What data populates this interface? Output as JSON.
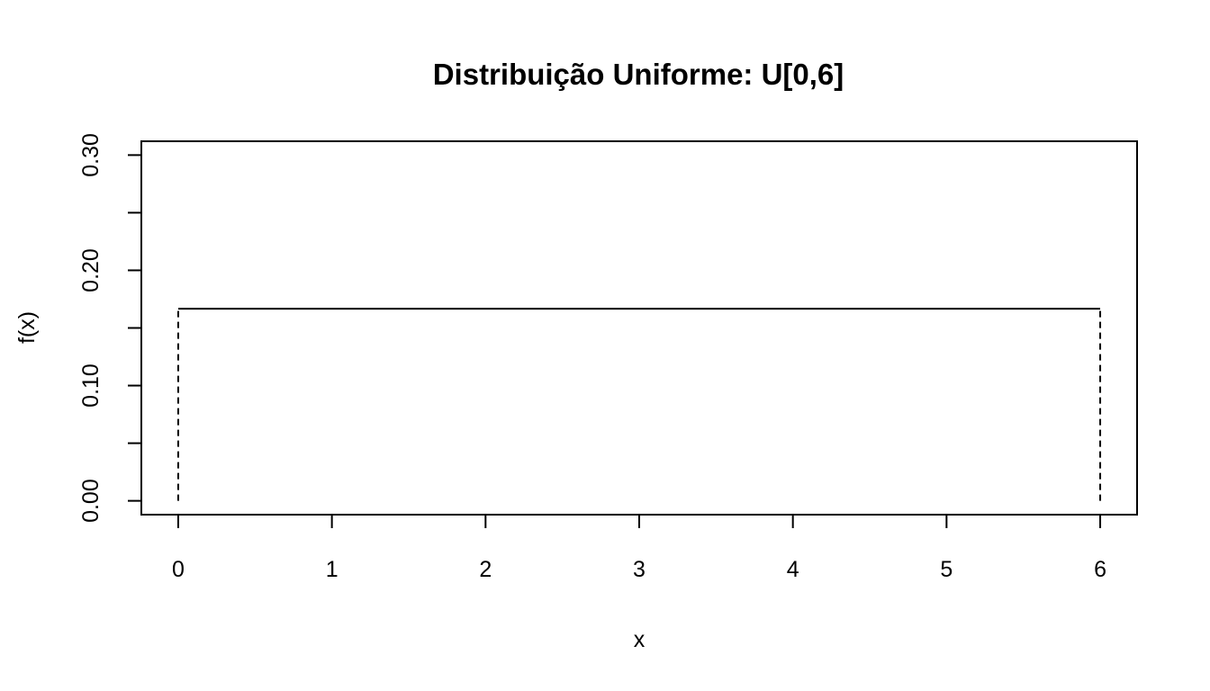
{
  "chart_data": {
    "type": "line",
    "title": "Distribuição Uniforme: U[0,6]",
    "xlabel": "x",
    "ylabel": "f(x)",
    "xlim": [
      -0.24,
      6.24
    ],
    "ylim": [
      -0.012,
      0.312
    ],
    "x_ticks": [
      0,
      1,
      2,
      3,
      4,
      5,
      6
    ],
    "x_tick_labels": [
      "0",
      "1",
      "2",
      "3",
      "4",
      "5",
      "6"
    ],
    "y_ticks": [
      0.0,
      0.05,
      0.1,
      0.15,
      0.2,
      0.25,
      0.3
    ],
    "y_tick_labels": [
      "0.00",
      "",
      "0.10",
      "",
      "0.20",
      "",
      "0.30"
    ],
    "grid": false,
    "series": [
      {
        "style": "solid",
        "color": "#000000",
        "x": [
          0,
          6
        ],
        "y": [
          0.1667,
          0.1667
        ]
      }
    ],
    "vertical_segments": [
      {
        "x": 0,
        "y0": 0,
        "y1": 0.1667,
        "style": "dashed"
      },
      {
        "x": 6,
        "y0": 0,
        "y1": 0.1667,
        "style": "dashed"
      }
    ]
  }
}
